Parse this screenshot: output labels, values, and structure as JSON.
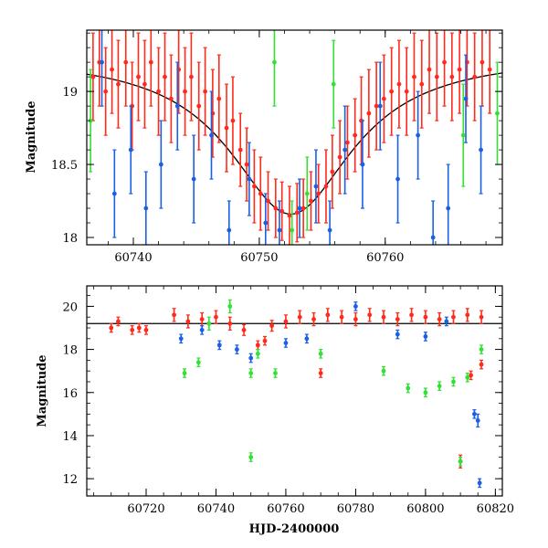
{
  "chart_data": [
    {
      "type": "scatter",
      "panel": "top",
      "title": "",
      "xlabel": "",
      "ylabel": "Magnitude",
      "xlim": [
        60736.3,
        60769.3
      ],
      "ylim": [
        19.42,
        17.95
      ],
      "y_inverted": true,
      "x_ticks": [
        60740,
        60750,
        60760
      ],
      "x_tick_labels": [
        "60740",
        "60750",
        "60760"
      ],
      "y_ticks": [
        18,
        18.5,
        19
      ],
      "y_tick_labels": [
        "18",
        "18.5",
        "19"
      ],
      "model_curve": {
        "color": "#000000",
        "peak_hjd": 60752.5,
        "peak_mag": 18.16,
        "baseline_mag": 19.25,
        "tE_days": 6.0
      },
      "series": [
        {
          "color": "#ff2a1a",
          "points": [
            [
              60736.8,
              19.1,
              0.3
            ],
            [
              60737.3,
              19.2,
              0.3
            ],
            [
              60737.8,
              19.0,
              0.3
            ],
            [
              60738.3,
              19.15,
              0.3
            ],
            [
              60738.8,
              19.05,
              0.3
            ],
            [
              60739.4,
              19.2,
              0.3
            ],
            [
              60739.9,
              18.9,
              0.3
            ],
            [
              60740.4,
              19.1,
              0.3
            ],
            [
              60740.9,
              19.05,
              0.3
            ],
            [
              60741.4,
              19.2,
              0.3
            ],
            [
              60742.0,
              19.0,
              0.3
            ],
            [
              60742.5,
              19.1,
              0.3
            ],
            [
              60743.0,
              18.95,
              0.3
            ],
            [
              60743.6,
              19.15,
              0.3
            ],
            [
              60744.1,
              19.0,
              0.3
            ],
            [
              60744.6,
              19.1,
              0.3
            ],
            [
              60745.2,
              18.9,
              0.3
            ],
            [
              60745.7,
              19.0,
              0.3
            ],
            [
              60746.3,
              18.85,
              0.3
            ],
            [
              60746.8,
              18.95,
              0.3
            ],
            [
              60747.4,
              18.75,
              0.3
            ],
            [
              60747.9,
              18.8,
              0.3
            ],
            [
              60748.5,
              18.6,
              0.25
            ],
            [
              60749.0,
              18.5,
              0.25
            ],
            [
              60749.6,
              18.35,
              0.25
            ],
            [
              60750.1,
              18.3,
              0.25
            ],
            [
              60750.7,
              18.25,
              0.2
            ],
            [
              60751.3,
              18.2,
              0.2
            ],
            [
              60751.8,
              18.18,
              0.2
            ],
            [
              60752.4,
              18.15,
              0.2
            ],
            [
              60753.0,
              18.17,
              0.2
            ],
            [
              60753.5,
              18.2,
              0.2
            ],
            [
              60754.1,
              18.25,
              0.2
            ],
            [
              60754.7,
              18.3,
              0.2
            ],
            [
              60755.3,
              18.35,
              0.25
            ],
            [
              60755.8,
              18.45,
              0.25
            ],
            [
              60756.4,
              18.55,
              0.25
            ],
            [
              60757.0,
              18.65,
              0.25
            ],
            [
              60757.6,
              18.7,
              0.25
            ],
            [
              60758.1,
              18.8,
              0.3
            ],
            [
              60758.7,
              18.85,
              0.3
            ],
            [
              60759.3,
              18.9,
              0.3
            ],
            [
              60759.9,
              18.95,
              0.3
            ],
            [
              60760.5,
              19.0,
              0.3
            ],
            [
              60761.1,
              19.05,
              0.3
            ],
            [
              60761.7,
              19.0,
              0.3
            ],
            [
              60762.3,
              19.1,
              0.3
            ],
            [
              60762.9,
              19.05,
              0.3
            ],
            [
              60763.5,
              19.15,
              0.3
            ],
            [
              60764.1,
              19.1,
              0.3
            ],
            [
              60764.7,
              19.2,
              0.3
            ],
            [
              60765.3,
              19.1,
              0.3
            ],
            [
              60765.9,
              19.15,
              0.3
            ],
            [
              60766.5,
              19.2,
              0.3
            ],
            [
              60767.1,
              19.1,
              0.3
            ],
            [
              60767.7,
              19.2,
              0.3
            ],
            [
              60768.3,
              19.15,
              0.3
            ]
          ]
        },
        {
          "color": "#1a5fe6",
          "points": [
            [
              60737.5,
              19.2,
              0.3
            ],
            [
              60738.5,
              18.3,
              0.3
            ],
            [
              60739.8,
              18.6,
              0.3
            ],
            [
              60741.0,
              18.2,
              0.25
            ],
            [
              60742.2,
              18.5,
              0.3
            ],
            [
              60743.5,
              18.9,
              0.3
            ],
            [
              60744.8,
              18.4,
              0.3
            ],
            [
              60746.2,
              18.7,
              0.3
            ],
            [
              60747.6,
              18.05,
              0.2
            ],
            [
              60749.2,
              18.4,
              0.25
            ],
            [
              60750.5,
              18.1,
              0.2
            ],
            [
              60751.6,
              18.05,
              0.2
            ],
            [
              60753.2,
              18.2,
              0.2
            ],
            [
              60754.5,
              18.35,
              0.25
            ],
            [
              60755.6,
              18.05,
              0.2
            ],
            [
              60756.8,
              18.6,
              0.3
            ],
            [
              60758.2,
              18.5,
              0.3
            ],
            [
              60759.6,
              18.9,
              0.3
            ],
            [
              60761.0,
              18.4,
              0.3
            ],
            [
              60762.6,
              18.7,
              0.3
            ],
            [
              60763.8,
              18.0,
              0.25
            ],
            [
              60765.0,
              18.2,
              0.3
            ],
            [
              60766.4,
              18.95,
              0.3
            ],
            [
              60767.6,
              18.6,
              0.3
            ]
          ]
        },
        {
          "color": "#33e033",
          "points": [
            [
              60736.6,
              18.8,
              0.35
            ],
            [
              60751.2,
              19.2,
              0.3
            ],
            [
              60752.6,
              18.05,
              0.2
            ],
            [
              60753.8,
              18.3,
              0.25
            ],
            [
              60755.9,
              19.05,
              0.3
            ],
            [
              60766.2,
              18.7,
              0.35
            ],
            [
              60768.9,
              18.85,
              0.35
            ]
          ]
        }
      ]
    },
    {
      "type": "scatter",
      "panel": "bottom",
      "title": "",
      "xlabel": "HJD-2400000",
      "ylabel": "Magnitude",
      "xlim": [
        60703,
        60822
      ],
      "ylim": [
        20.95,
        11.2
      ],
      "y_inverted": true,
      "x_ticks": [
        60720,
        60740,
        60760,
        60780,
        60800,
        60820
      ],
      "x_tick_labels": [
        "60720",
        "60740",
        "60760",
        "60780",
        "60800",
        "60820"
      ],
      "y_ticks": [
        12,
        14,
        16,
        18,
        20
      ],
      "y_tick_labels": [
        "12",
        "14",
        "16",
        "18",
        "20"
      ],
      "baseline_mag": 19.2,
      "series": [
        {
          "color": "#ff2a1a",
          "points": [
            [
              60710,
              19.0,
              0.2
            ],
            [
              60712,
              19.3,
              0.2
            ],
            [
              60716,
              18.9,
              0.2
            ],
            [
              60718,
              19.0,
              0.2
            ],
            [
              60720,
              18.9,
              0.2
            ],
            [
              60728,
              19.6,
              0.3
            ],
            [
              60732,
              19.3,
              0.3
            ],
            [
              60736,
              19.4,
              0.3
            ],
            [
              60740,
              19.5,
              0.3
            ],
            [
              60744,
              19.2,
              0.3
            ],
            [
              60748,
              18.9,
              0.25
            ],
            [
              60752,
              18.2,
              0.2
            ],
            [
              60754,
              18.4,
              0.2
            ],
            [
              60756,
              19.1,
              0.25
            ],
            [
              60760,
              19.3,
              0.3
            ],
            [
              60764,
              19.5,
              0.3
            ],
            [
              60768,
              19.4,
              0.3
            ],
            [
              60772,
              19.6,
              0.3
            ],
            [
              60776,
              19.5,
              0.3
            ],
            [
              60780,
              19.4,
              0.3
            ],
            [
              60784,
              19.6,
              0.3
            ],
            [
              60788,
              19.5,
              0.3
            ],
            [
              60792,
              19.4,
              0.3
            ],
            [
              60796,
              19.6,
              0.3
            ],
            [
              60800,
              19.5,
              0.3
            ],
            [
              60804,
              19.4,
              0.3
            ],
            [
              60808,
              19.5,
              0.3
            ],
            [
              60812,
              19.6,
              0.3
            ],
            [
              60816,
              19.5,
              0.3
            ],
            [
              60770,
              16.9,
              0.2
            ],
            [
              60810,
              12.8,
              0.3
            ],
            [
              60813,
              16.8,
              0.2
            ],
            [
              60816,
              17.3,
              0.2
            ]
          ]
        },
        {
          "color": "#1a5fe6",
          "points": [
            [
              60730,
              18.5,
              0.2
            ],
            [
              60736,
              18.9,
              0.2
            ],
            [
              60741,
              18.2,
              0.2
            ],
            [
              60746,
              18.0,
              0.2
            ],
            [
              60750,
              17.6,
              0.2
            ],
            [
              60760,
              18.3,
              0.2
            ],
            [
              60766,
              18.5,
              0.2
            ],
            [
              60780,
              20.0,
              0.2
            ],
            [
              60792,
              18.7,
              0.2
            ],
            [
              60800,
              18.6,
              0.2
            ],
            [
              60806,
              19.3,
              0.2
            ],
            [
              60814,
              15.0,
              0.2
            ],
            [
              60815,
              14.7,
              0.3
            ],
            [
              60815.5,
              11.8,
              0.2
            ]
          ]
        },
        {
          "color": "#33e033",
          "points": [
            [
              60731,
              16.9,
              0.2
            ],
            [
              60735,
              17.4,
              0.2
            ],
            [
              60738,
              19.2,
              0.3
            ],
            [
              60744,
              20.0,
              0.3
            ],
            [
              60750,
              13.0,
              0.2
            ],
            [
              60750,
              16.9,
              0.2
            ],
            [
              60752,
              17.8,
              0.2
            ],
            [
              60757,
              16.9,
              0.2
            ],
            [
              60770,
              17.8,
              0.2
            ],
            [
              60788,
              17.0,
              0.2
            ],
            [
              60795,
              16.2,
              0.2
            ],
            [
              60800,
              16.0,
              0.2
            ],
            [
              60804,
              16.3,
              0.2
            ],
            [
              60808,
              16.5,
              0.2
            ],
            [
              60810,
              12.8,
              0.2
            ],
            [
              60812,
              16.7,
              0.2
            ],
            [
              60816,
              18.0,
              0.2
            ]
          ]
        }
      ]
    }
  ]
}
